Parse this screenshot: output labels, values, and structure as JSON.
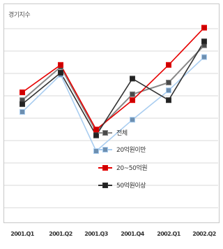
{
  "chart_data": {
    "type": "line",
    "ylabel": "경기지수",
    "categories": [
      "2001.Q1",
      "2001.Q2",
      "2001.Q3",
      "2001.Q4",
      "2002.Q1",
      "2002.Q2"
    ],
    "grid": true,
    "legend_position": "center-right",
    "ylim": [
      0,
      100
    ],
    "series": [
      {
        "name": "전체",
        "color": "#888888",
        "marker": "#4a4a4a",
        "values": [
          56,
          73,
          40,
          59,
          65,
          84
        ]
      },
      {
        "name": "20억원이만",
        "color": "#a9cdf0",
        "marker": "#6d8fb0",
        "values": [
          50,
          69,
          30,
          46,
          61,
          78
        ]
      },
      {
        "name": "20~50억원",
        "color": "#e60000",
        "marker": "#cc0000",
        "values": [
          60,
          74,
          41,
          56,
          74,
          93
        ]
      },
      {
        "name": "50억원이상",
        "color": "#333333",
        "marker": "#222222",
        "values": [
          54,
          70,
          38,
          67,
          56,
          86
        ]
      }
    ]
  }
}
